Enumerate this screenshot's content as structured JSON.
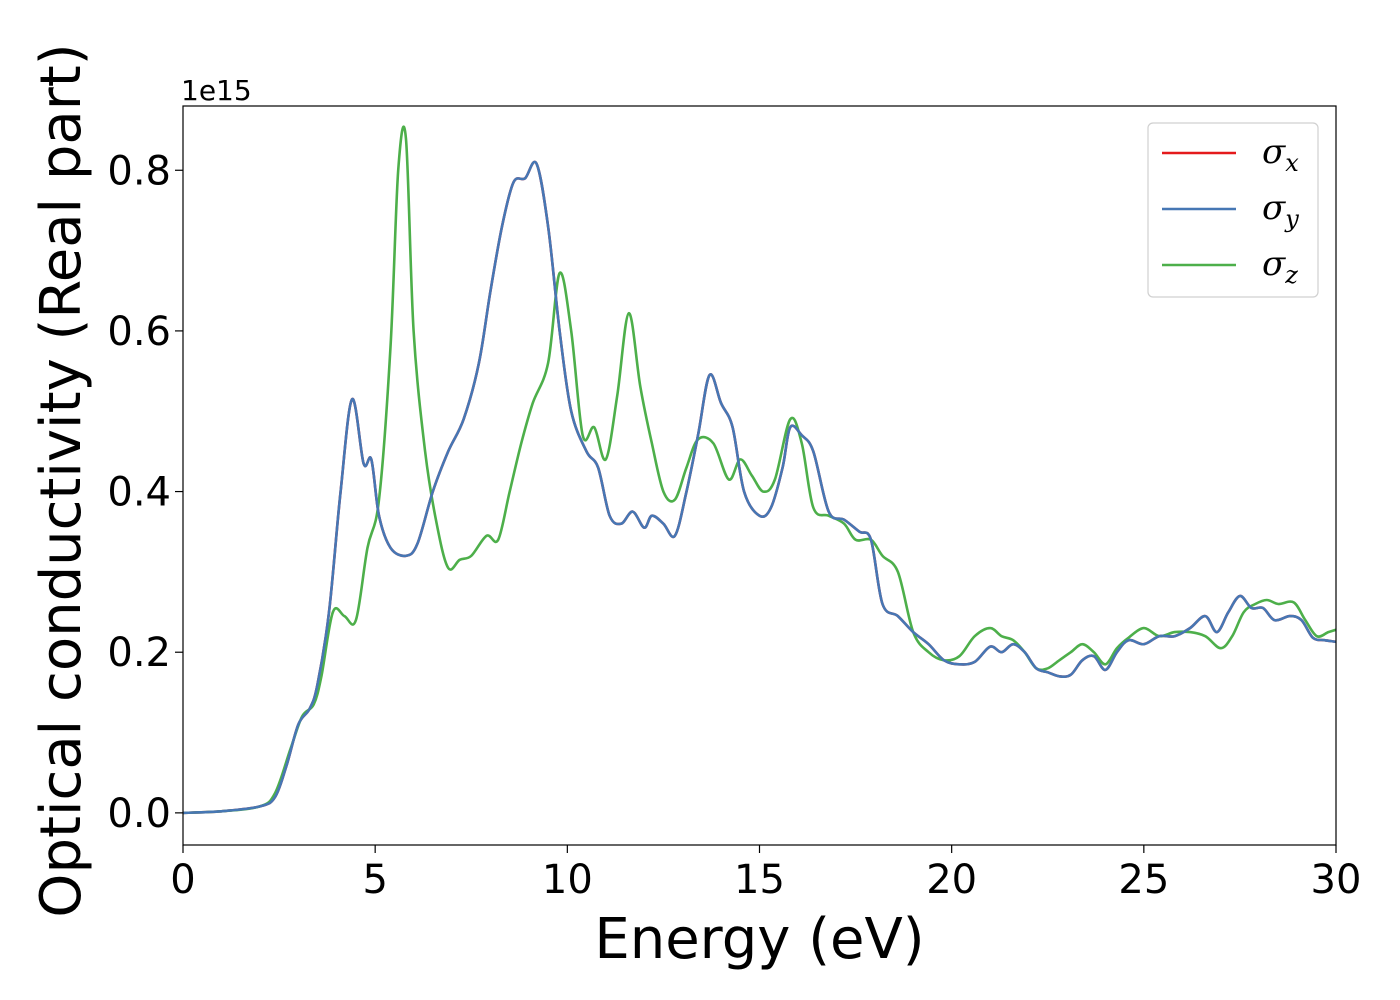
{
  "chart_data": {
    "type": "line",
    "xlabel": "Energy (eV)",
    "ylabel": "Optical conductivity (Real part)",
    "y_offset_label": "1e15",
    "xlim": [
      0,
      30
    ],
    "ylim": [
      -0.04,
      0.88
    ],
    "xticks": [
      0,
      5,
      10,
      15,
      20,
      25,
      30
    ],
    "xtick_labels": [
      "0",
      "5",
      "10",
      "15",
      "20",
      "25",
      "30"
    ],
    "yticks": [
      0.0,
      0.2,
      0.4,
      0.6,
      0.8
    ],
    "ytick_labels": [
      "0.0",
      "0.2",
      "0.4",
      "0.6",
      "0.8"
    ],
    "grid": false,
    "legend_position": "top-right",
    "series": [
      {
        "name": "σx",
        "symbol": "σ",
        "subscript": "x",
        "color": "#e41a1c",
        "x": [
          0,
          1,
          2,
          2.4,
          2.7,
          3.0,
          3.3,
          3.5,
          3.8,
          4.1,
          4.4,
          4.7,
          4.9,
          5.1,
          5.4,
          5.8,
          6.1,
          6.5,
          6.9,
          7.3,
          7.7,
          8.0,
          8.3,
          8.6,
          8.9,
          9.2,
          9.5,
          9.8,
          10.1,
          10.5,
          10.8,
          11.1,
          11.4,
          11.7,
          12.0,
          12.2,
          12.5,
          12.8,
          13.1,
          13.4,
          13.7,
          14.0,
          14.3,
          14.6,
          15.0,
          15.3,
          15.6,
          15.8,
          16.1,
          16.4,
          16.8,
          17.2,
          17.6,
          17.9,
          18.2,
          18.6,
          19.0,
          19.4,
          19.8,
          20.2,
          20.6,
          21.0,
          21.3,
          21.6,
          21.9,
          22.2,
          22.5,
          22.8,
          23.1,
          23.4,
          23.7,
          24.0,
          24.3,
          24.6,
          25.0,
          25.4,
          25.8,
          26.2,
          26.6,
          26.9,
          27.2,
          27.5,
          27.8,
          28.1,
          28.4,
          28.8,
          29.1,
          29.4,
          29.7,
          30.0
        ],
        "values": [
          0.0,
          0.002,
          0.008,
          0.02,
          0.06,
          0.11,
          0.13,
          0.16,
          0.25,
          0.4,
          0.515,
          0.435,
          0.44,
          0.37,
          0.33,
          0.32,
          0.335,
          0.4,
          0.45,
          0.49,
          0.56,
          0.65,
          0.73,
          0.785,
          0.79,
          0.808,
          0.73,
          0.6,
          0.5,
          0.45,
          0.43,
          0.37,
          0.36,
          0.375,
          0.355,
          0.37,
          0.36,
          0.345,
          0.4,
          0.47,
          0.545,
          0.51,
          0.48,
          0.4,
          0.37,
          0.38,
          0.43,
          0.48,
          0.47,
          0.45,
          0.375,
          0.365,
          0.35,
          0.34,
          0.26,
          0.245,
          0.225,
          0.21,
          0.19,
          0.185,
          0.188,
          0.207,
          0.2,
          0.21,
          0.2,
          0.18,
          0.175,
          0.17,
          0.172,
          0.19,
          0.195,
          0.178,
          0.2,
          0.215,
          0.21,
          0.22,
          0.22,
          0.23,
          0.245,
          0.225,
          0.25,
          0.27,
          0.255,
          0.255,
          0.24,
          0.245,
          0.24,
          0.218,
          0.215,
          0.213
        ]
      },
      {
        "name": "σy",
        "symbol": "σ",
        "subscript": "y",
        "color": "#4677b4",
        "x": [
          0,
          1,
          2,
          2.4,
          2.7,
          3.0,
          3.3,
          3.5,
          3.8,
          4.1,
          4.4,
          4.7,
          4.9,
          5.1,
          5.4,
          5.8,
          6.1,
          6.5,
          6.9,
          7.3,
          7.7,
          8.0,
          8.3,
          8.6,
          8.9,
          9.2,
          9.5,
          9.8,
          10.1,
          10.5,
          10.8,
          11.1,
          11.4,
          11.7,
          12.0,
          12.2,
          12.5,
          12.8,
          13.1,
          13.4,
          13.7,
          14.0,
          14.3,
          14.6,
          15.0,
          15.3,
          15.6,
          15.8,
          16.1,
          16.4,
          16.8,
          17.2,
          17.6,
          17.9,
          18.2,
          18.6,
          19.0,
          19.4,
          19.8,
          20.2,
          20.6,
          21.0,
          21.3,
          21.6,
          21.9,
          22.2,
          22.5,
          22.8,
          23.1,
          23.4,
          23.7,
          24.0,
          24.3,
          24.6,
          25.0,
          25.4,
          25.8,
          26.2,
          26.6,
          26.9,
          27.2,
          27.5,
          27.8,
          28.1,
          28.4,
          28.8,
          29.1,
          29.4,
          29.7,
          30.0
        ],
        "values": [
          0.0,
          0.002,
          0.008,
          0.02,
          0.06,
          0.11,
          0.13,
          0.16,
          0.25,
          0.4,
          0.515,
          0.435,
          0.44,
          0.37,
          0.33,
          0.32,
          0.335,
          0.4,
          0.45,
          0.49,
          0.56,
          0.65,
          0.73,
          0.785,
          0.79,
          0.808,
          0.73,
          0.6,
          0.5,
          0.45,
          0.43,
          0.37,
          0.36,
          0.375,
          0.355,
          0.37,
          0.36,
          0.345,
          0.4,
          0.47,
          0.545,
          0.51,
          0.48,
          0.4,
          0.37,
          0.38,
          0.43,
          0.48,
          0.47,
          0.45,
          0.375,
          0.365,
          0.35,
          0.34,
          0.26,
          0.245,
          0.225,
          0.21,
          0.19,
          0.185,
          0.188,
          0.207,
          0.2,
          0.21,
          0.2,
          0.18,
          0.175,
          0.17,
          0.172,
          0.19,
          0.195,
          0.178,
          0.2,
          0.215,
          0.21,
          0.22,
          0.22,
          0.23,
          0.245,
          0.225,
          0.25,
          0.27,
          0.255,
          0.255,
          0.24,
          0.245,
          0.24,
          0.218,
          0.215,
          0.213
        ]
      },
      {
        "name": "σz",
        "symbol": "σ",
        "subscript": "z",
        "color": "#4daf4a",
        "x": [
          0,
          1,
          2,
          2.4,
          2.8,
          3.1,
          3.4,
          3.6,
          3.9,
          4.2,
          4.5,
          4.8,
          5.1,
          5.4,
          5.6,
          5.8,
          6.0,
          6.3,
          6.6,
          6.9,
          7.2,
          7.5,
          7.9,
          8.2,
          8.5,
          8.8,
          9.1,
          9.5,
          9.8,
          10.1,
          10.4,
          10.7,
          11.0,
          11.3,
          11.6,
          11.9,
          12.2,
          12.5,
          12.8,
          13.1,
          13.4,
          13.8,
          14.2,
          14.5,
          14.8,
          15.1,
          15.4,
          15.8,
          16.1,
          16.4,
          16.8,
          17.2,
          17.5,
          17.9,
          18.2,
          18.6,
          19.0,
          19.4,
          19.8,
          20.2,
          20.6,
          21.0,
          21.3,
          21.6,
          21.9,
          22.2,
          22.5,
          22.8,
          23.1,
          23.4,
          23.7,
          24.0,
          24.3,
          24.6,
          25.0,
          25.4,
          25.8,
          26.2,
          26.6,
          27.0,
          27.3,
          27.6,
          27.9,
          28.2,
          28.5,
          28.9,
          29.2,
          29.5,
          29.8,
          30.0
        ],
        "values": [
          0.0,
          0.002,
          0.008,
          0.025,
          0.08,
          0.12,
          0.135,
          0.17,
          0.25,
          0.245,
          0.24,
          0.33,
          0.39,
          0.58,
          0.8,
          0.84,
          0.6,
          0.45,
          0.36,
          0.305,
          0.315,
          0.32,
          0.345,
          0.34,
          0.4,
          0.46,
          0.51,
          0.56,
          0.672,
          0.6,
          0.47,
          0.48,
          0.44,
          0.52,
          0.622,
          0.53,
          0.46,
          0.4,
          0.39,
          0.43,
          0.465,
          0.46,
          0.415,
          0.44,
          0.42,
          0.4,
          0.415,
          0.49,
          0.46,
          0.38,
          0.37,
          0.36,
          0.34,
          0.34,
          0.32,
          0.3,
          0.225,
          0.2,
          0.19,
          0.195,
          0.22,
          0.23,
          0.22,
          0.215,
          0.2,
          0.18,
          0.18,
          0.19,
          0.2,
          0.21,
          0.2,
          0.185,
          0.205,
          0.218,
          0.23,
          0.22,
          0.225,
          0.225,
          0.22,
          0.205,
          0.22,
          0.25,
          0.26,
          0.265,
          0.26,
          0.262,
          0.24,
          0.22,
          0.225,
          0.228
        ]
      }
    ]
  }
}
